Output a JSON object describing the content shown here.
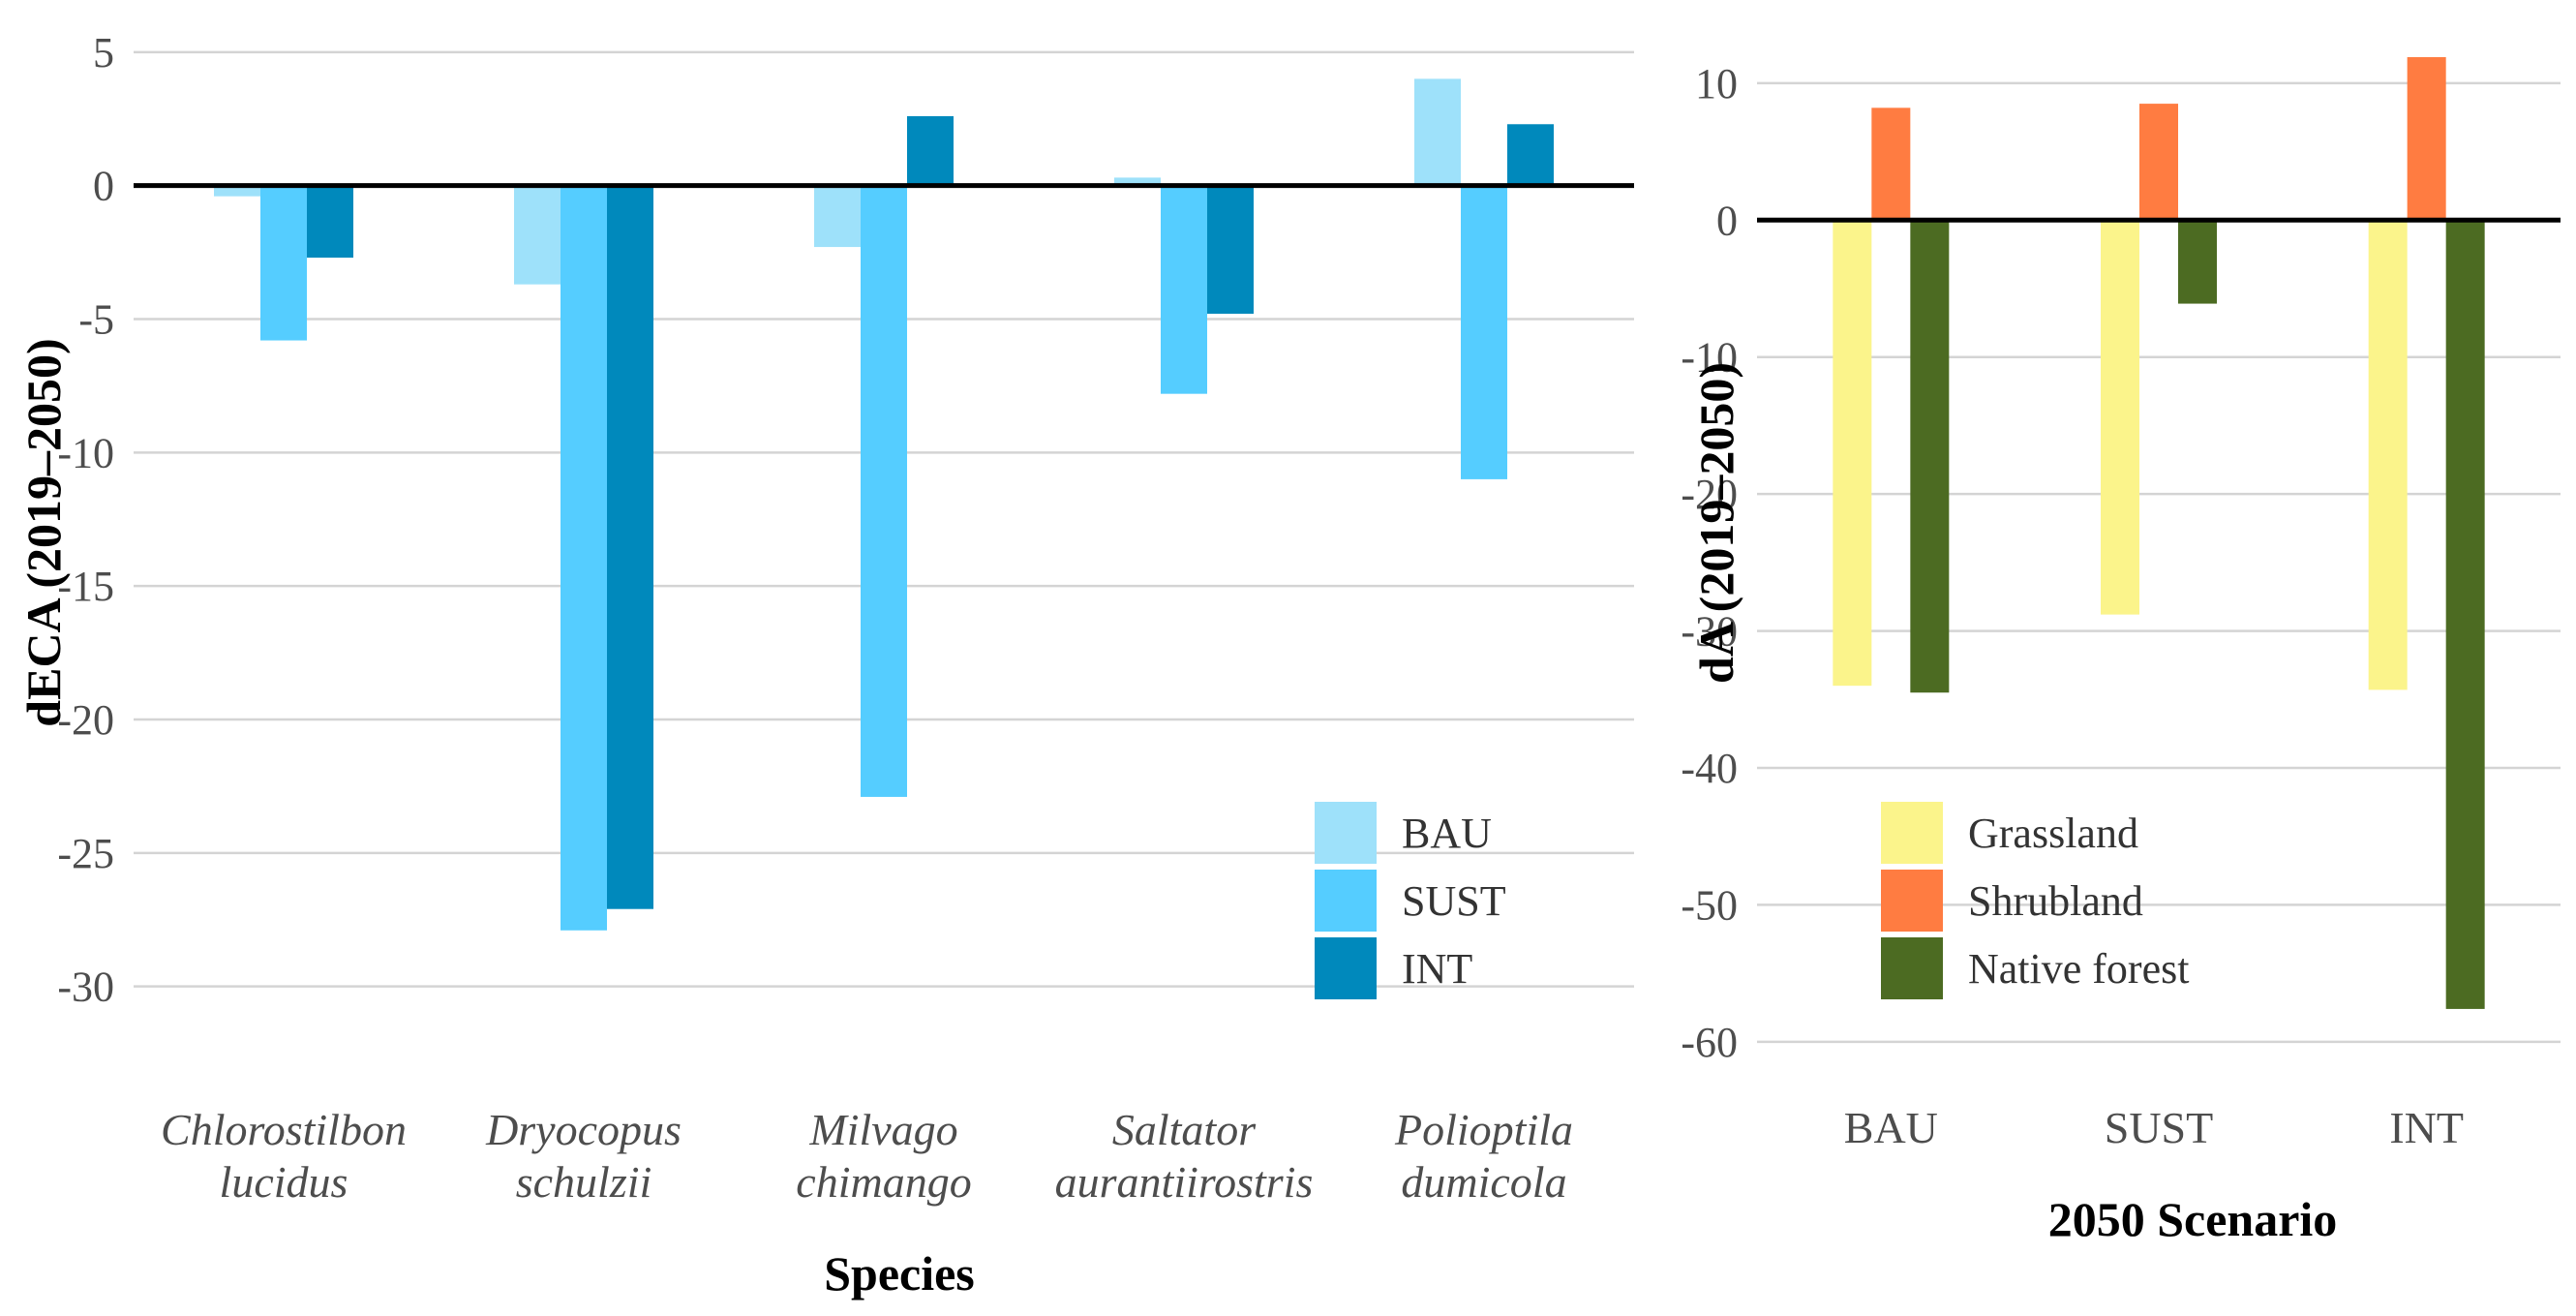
{
  "chart_data": [
    {
      "type": "bar",
      "title": "",
      "xlabel": "Species",
      "ylabel": "dECA (2019–2050)",
      "categories": [
        [
          "Chlorostilbon",
          "lucidus"
        ],
        [
          "Dryocopus",
          "schulzii"
        ],
        [
          "Milvago",
          "chimango"
        ],
        [
          "Saltator",
          "aurantiirostris"
        ],
        [
          "Polioptila",
          "dumicola"
        ]
      ],
      "category_style": "italic",
      "yticks": [
        5,
        0,
        -5,
        -10,
        -15,
        -20,
        -25,
        -30
      ],
      "ytick_labels": [
        "5",
        "0",
        "-5",
        "-10",
        "-15",
        "-20",
        "-25",
        "-30"
      ],
      "ylim": [
        -31.5,
        6.3
      ],
      "zero_line": true,
      "series": [
        {
          "name": "BAU",
          "color": "#9ee1fa",
          "values": [
            -0.4,
            -3.7,
            -2.3,
            0.3,
            4.0
          ]
        },
        {
          "name": "SUST",
          "color": "#55cdff",
          "values": [
            -5.8,
            -27.9,
            -22.9,
            -7.8,
            -11.0
          ]
        },
        {
          "name": "INT",
          "color": "#0089bc",
          "values": [
            -2.7,
            -27.1,
            2.6,
            -4.8,
            2.3
          ]
        }
      ],
      "legend": {
        "position": "bottom-right",
        "entries": [
          "BAU",
          "SUST",
          "INT"
        ]
      }
    },
    {
      "type": "bar",
      "title": "",
      "xlabel": "2050 Scenario",
      "ylabel": "dA (2019–2050)",
      "categories": [
        [
          "BAU"
        ],
        [
          "SUST"
        ],
        [
          "INT"
        ]
      ],
      "category_style": "normal",
      "yticks": [
        10,
        0,
        -10,
        -20,
        -30,
        -40,
        -50,
        -60
      ],
      "ytick_labels": [
        "10",
        "0",
        "-10",
        "-20",
        "-30",
        "-40",
        "-50",
        "-60"
      ],
      "ylim": [
        -61,
        14.8
      ],
      "zero_line": true,
      "series": [
        {
          "name": "Grassland",
          "color": "#fbf48b",
          "values": [
            -34.0,
            -28.8,
            -34.3
          ]
        },
        {
          "name": "Shrubland",
          "color": "#ff7c41",
          "values": [
            8.2,
            8.5,
            11.9
          ]
        },
        {
          "name": "Native forest",
          "color": "#4c6b22",
          "values": [
            -34.5,
            -6.1,
            -57.6
          ]
        }
      ],
      "legend": {
        "position": "bottom-left",
        "entries": [
          "Grassland",
          "Shrubland",
          "Native forest"
        ]
      }
    }
  ]
}
